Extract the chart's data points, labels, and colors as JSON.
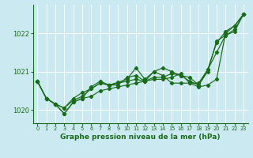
{
  "xlabel": "Graphe pression niveau de la mer (hPa)",
  "ylim": [
    1019.65,
    1022.75
  ],
  "xlim": [
    -0.5,
    23.5
  ],
  "yticks": [
    1020,
    1021,
    1022
  ],
  "xticks": [
    0,
    1,
    2,
    3,
    4,
    5,
    6,
    7,
    8,
    9,
    10,
    11,
    12,
    13,
    14,
    15,
    16,
    17,
    18,
    19,
    20,
    21,
    22,
    23
  ],
  "bg_color": "#cbe9f0",
  "grid_color": "#ffffff",
  "line_color": "#1a6b1a",
  "series": [
    [
      1020.75,
      1020.3,
      1020.15,
      1019.9,
      1020.2,
      1020.3,
      1020.35,
      1020.5,
      1020.55,
      1020.6,
      1020.65,
      1020.7,
      1020.75,
      1020.8,
      1020.8,
      1020.85,
      1020.95,
      1020.7,
      1020.7,
      1021.05,
      1021.75,
      1022.05,
      1022.2,
      1022.5
    ],
    [
      1020.75,
      1020.3,
      1020.15,
      1020.05,
      1020.25,
      1020.35,
      1020.55,
      1020.7,
      1020.65,
      1020.7,
      1020.75,
      1020.8,
      1020.75,
      1020.85,
      1020.85,
      1020.95,
      1020.9,
      1020.75,
      1020.65,
      1021.05,
      1021.5,
      1021.95,
      1022.1,
      1022.5
    ],
    [
      1020.75,
      1020.3,
      1020.15,
      1019.9,
      1020.2,
      1020.3,
      1020.6,
      1020.75,
      1020.65,
      1020.65,
      1020.85,
      1020.9,
      1020.75,
      1021.0,
      1020.9,
      1020.7,
      1020.7,
      1020.7,
      1020.6,
      1020.65,
      1020.8,
      1022.0,
      1022.2,
      1022.5
    ],
    [
      1020.75,
      1020.3,
      1020.15,
      1020.05,
      1020.3,
      1020.45,
      1020.55,
      1020.7,
      1020.65,
      1020.72,
      1020.8,
      1021.1,
      1020.8,
      1021.0,
      1021.1,
      1021.0,
      1020.9,
      1020.85,
      1020.65,
      1021.0,
      1021.8,
      1021.95,
      1022.05,
      1022.5
    ]
  ]
}
